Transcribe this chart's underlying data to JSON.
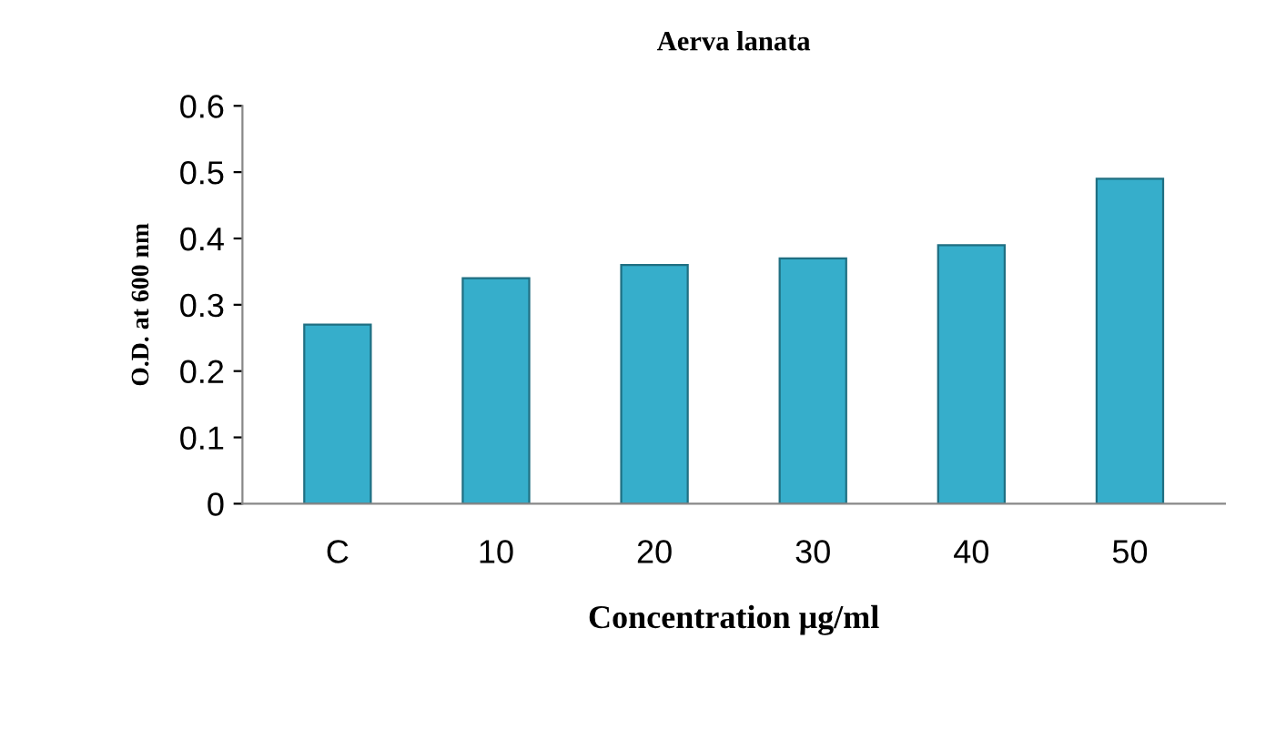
{
  "chart_data": {
    "type": "bar",
    "title": "Aerva lanata",
    "xlabel": "Concentration μg/ml",
    "ylabel": "O.D. at 600 nm",
    "categories": [
      "C",
      "10",
      "20",
      "30",
      "40",
      "50"
    ],
    "values": [
      0.27,
      0.34,
      0.36,
      0.37,
      0.39,
      0.49
    ],
    "color": "#36aecb",
    "ylim": [
      0,
      0.6
    ],
    "yticks": [
      0,
      0.1,
      0.2,
      0.3,
      0.4,
      0.5,
      0.6
    ],
    "grid": false,
    "legend": false
  }
}
